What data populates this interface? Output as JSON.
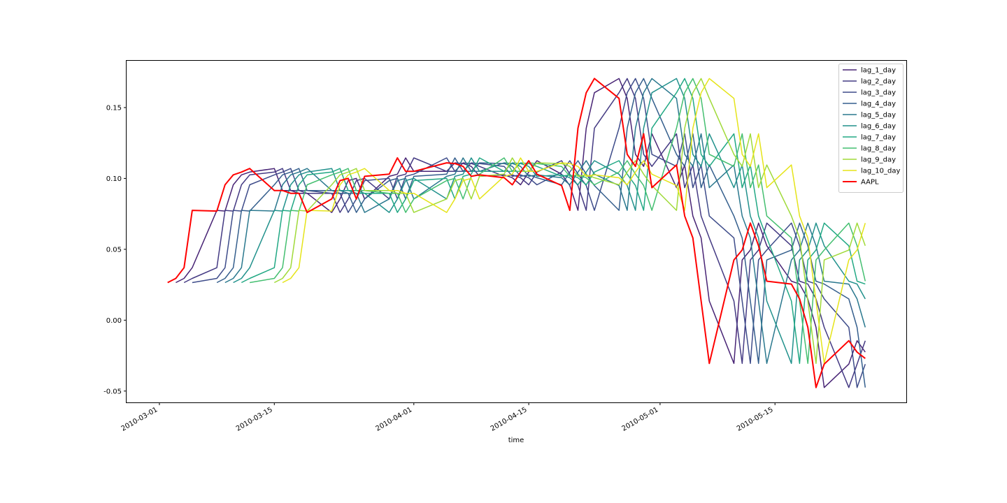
{
  "chart_data": {
    "type": "line",
    "title": "",
    "xlabel": "time",
    "ylabel": "",
    "xlim": [
      "2010-02-25",
      "2010-05-31"
    ],
    "ylim": [
      -0.058,
      0.183
    ],
    "grid": false,
    "legend_position": "top-right",
    "x_ticks": [
      "2010-03-01",
      "2010-03-15",
      "2010-04-01",
      "2010-04-15",
      "2010-05-01",
      "2010-05-15"
    ],
    "y_ticks": [
      -0.05,
      0.0,
      0.05,
      0.1,
      0.15
    ],
    "x": [
      "2010-03-02",
      "2010-03-03",
      "2010-03-04",
      "2010-03-05",
      "2010-03-08",
      "2010-03-09",
      "2010-03-10",
      "2010-03-11",
      "2010-03-12",
      "2010-03-15",
      "2010-03-16",
      "2010-03-17",
      "2010-03-18",
      "2010-03-19",
      "2010-03-22",
      "2010-03-23",
      "2010-03-24",
      "2010-03-25",
      "2010-03-26",
      "2010-03-29",
      "2010-03-30",
      "2010-03-31",
      "2010-04-01",
      "2010-04-05",
      "2010-04-06",
      "2010-04-07",
      "2010-04-08",
      "2010-04-09",
      "2010-04-12",
      "2010-04-13",
      "2010-04-14",
      "2010-04-15",
      "2010-04-16",
      "2010-04-19",
      "2010-04-20",
      "2010-04-21",
      "2010-04-22",
      "2010-04-23",
      "2010-04-26",
      "2010-04-27",
      "2010-04-28",
      "2010-04-29",
      "2010-04-30",
      "2010-05-03",
      "2010-05-04",
      "2010-05-05",
      "2010-05-06",
      "2010-05-07",
      "2010-05-10",
      "2010-05-11",
      "2010-05-12",
      "2010-05-13",
      "2010-05-14",
      "2010-05-17",
      "2010-05-18",
      "2010-05-19",
      "2010-05-20",
      "2010-05-21",
      "2010-05-24",
      "2010-05-25",
      "2010-05-26"
    ],
    "aapl": [
      0.0265,
      0.0295,
      0.037,
      0.0775,
      0.077,
      0.0955,
      0.1025,
      0.1045,
      0.107,
      0.0915,
      0.0915,
      0.0895,
      0.0895,
      0.076,
      0.0855,
      0.0985,
      0.1,
      0.0855,
      0.1015,
      0.103,
      0.1145,
      0.105,
      0.105,
      0.111,
      0.1105,
      0.1085,
      0.1015,
      0.1025,
      0.1005,
      0.0955,
      0.1045,
      0.1125,
      0.103,
      0.095,
      0.0775,
      0.1355,
      0.1605,
      0.1705,
      0.1565,
      0.117,
      0.1085,
      0.1315,
      0.0935,
      0.1095,
      0.0735,
      0.058,
      0.0135,
      -0.0305,
      0.0425,
      0.0495,
      0.0685,
      0.0525,
      0.0275,
      0.0255,
      0.015,
      -0.005,
      -0.0475,
      -0.031,
      -0.0145,
      -0.0225,
      -0.027
    ],
    "series": [
      {
        "name": "lag_1_day",
        "color": "#482475"
      },
      {
        "name": "lag_2_day",
        "color": "#443a83"
      },
      {
        "name": "lag_3_day",
        "color": "#3e4c8a"
      },
      {
        "name": "lag_4_day",
        "color": "#355f8d"
      },
      {
        "name": "lag_5_day",
        "color": "#2a788e"
      },
      {
        "name": "lag_6_day",
        "color": "#21918c"
      },
      {
        "name": "lag_7_day",
        "color": "#22a884"
      },
      {
        "name": "lag_8_day",
        "color": "#44bf70"
      },
      {
        "name": "lag_9_day",
        "color": "#a0da39"
      },
      {
        "name": "lag_10_day",
        "color": "#e5e419"
      },
      {
        "name": "AAPL",
        "color": "#ff0000"
      }
    ]
  }
}
